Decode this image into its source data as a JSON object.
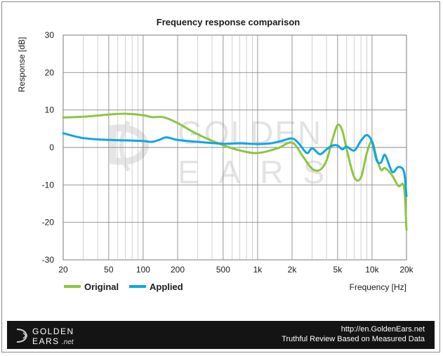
{
  "chart_data": {
    "type": "line",
    "title": "Frequency response comparison",
    "xlabel": "Frequency [Hz]",
    "ylabel": "Response [dB]",
    "xscale": "log",
    "xlim": [
      20,
      20000
    ],
    "ylim": [
      -30,
      30
    ],
    "xticks": [
      {
        "value": 20,
        "label": "20"
      },
      {
        "value": 50,
        "label": "50"
      },
      {
        "value": 100,
        "label": "100"
      },
      {
        "value": 200,
        "label": "200"
      },
      {
        "value": 500,
        "label": "500"
      },
      {
        "value": 1000,
        "label": "1k"
      },
      {
        "value": 2000,
        "label": "2k"
      },
      {
        "value": 5000,
        "label": "5k"
      },
      {
        "value": 10000,
        "label": "10k"
      },
      {
        "value": 20000,
        "label": "20k"
      }
    ],
    "yticks": [
      30,
      20,
      10,
      0,
      -10,
      -20,
      -30
    ],
    "grid": true,
    "legend_position": "bottom-left",
    "series": [
      {
        "name": "Original",
        "color": "#8cc63f",
        "x": [
          20,
          30,
          50,
          70,
          100,
          120,
          150,
          200,
          300,
          500,
          700,
          1000,
          1500,
          2000,
          2500,
          3000,
          3500,
          4000,
          4500,
          5000,
          5500,
          6000,
          7000,
          8000,
          9000,
          10000,
          11000,
          12000,
          13000,
          15000,
          17000,
          19000,
          20000
        ],
        "values": [
          8,
          8.2,
          8.8,
          9,
          8.6,
          8.1,
          8.1,
          6.5,
          3.5,
          0.6,
          -0.8,
          -1.5,
          -0.2,
          1.3,
          -2.5,
          -5.7,
          -6,
          -3.5,
          2,
          6,
          4.5,
          -0.5,
          -8,
          -8,
          -1.5,
          1.6,
          -3,
          -6,
          -5.5,
          -7.5,
          -10.3,
          -10.5,
          -22
        ]
      },
      {
        "name": "Applied",
        "color": "#0ea5e6",
        "x": [
          20,
          30,
          50,
          70,
          100,
          120,
          140,
          160,
          200,
          300,
          500,
          700,
          1000,
          1300,
          1600,
          2000,
          2300,
          2700,
          3000,
          3500,
          4000,
          4500,
          5000,
          5500,
          6000,
          7000,
          8000,
          9000,
          10000,
          11000,
          12000,
          13000,
          15000,
          17000,
          19000,
          20000
        ],
        "values": [
          3.8,
          2.5,
          2,
          1.9,
          1.7,
          1.5,
          2.1,
          2.7,
          2,
          1.5,
          1,
          1.1,
          0.9,
          1.1,
          1.7,
          2.4,
          1,
          -1.5,
          -0.2,
          -1.8,
          -0.5,
          0.5,
          0.5,
          -0.5,
          0.2,
          -0.8,
          1.8,
          3.3,
          1.5,
          -3.5,
          -4,
          -2,
          -6.5,
          -5.2,
          -6.5,
          -13
        ]
      }
    ]
  },
  "watermark": {
    "line1": "GOLDEN",
    "line2": "EARS"
  },
  "footer": {
    "logo_line1": "GOLDEN",
    "logo_line2": "EARS",
    "logo_suffix": ".net",
    "url": "http://en.GoldenEars.net",
    "tagline": "Truthful Review Based on Measured Data"
  }
}
